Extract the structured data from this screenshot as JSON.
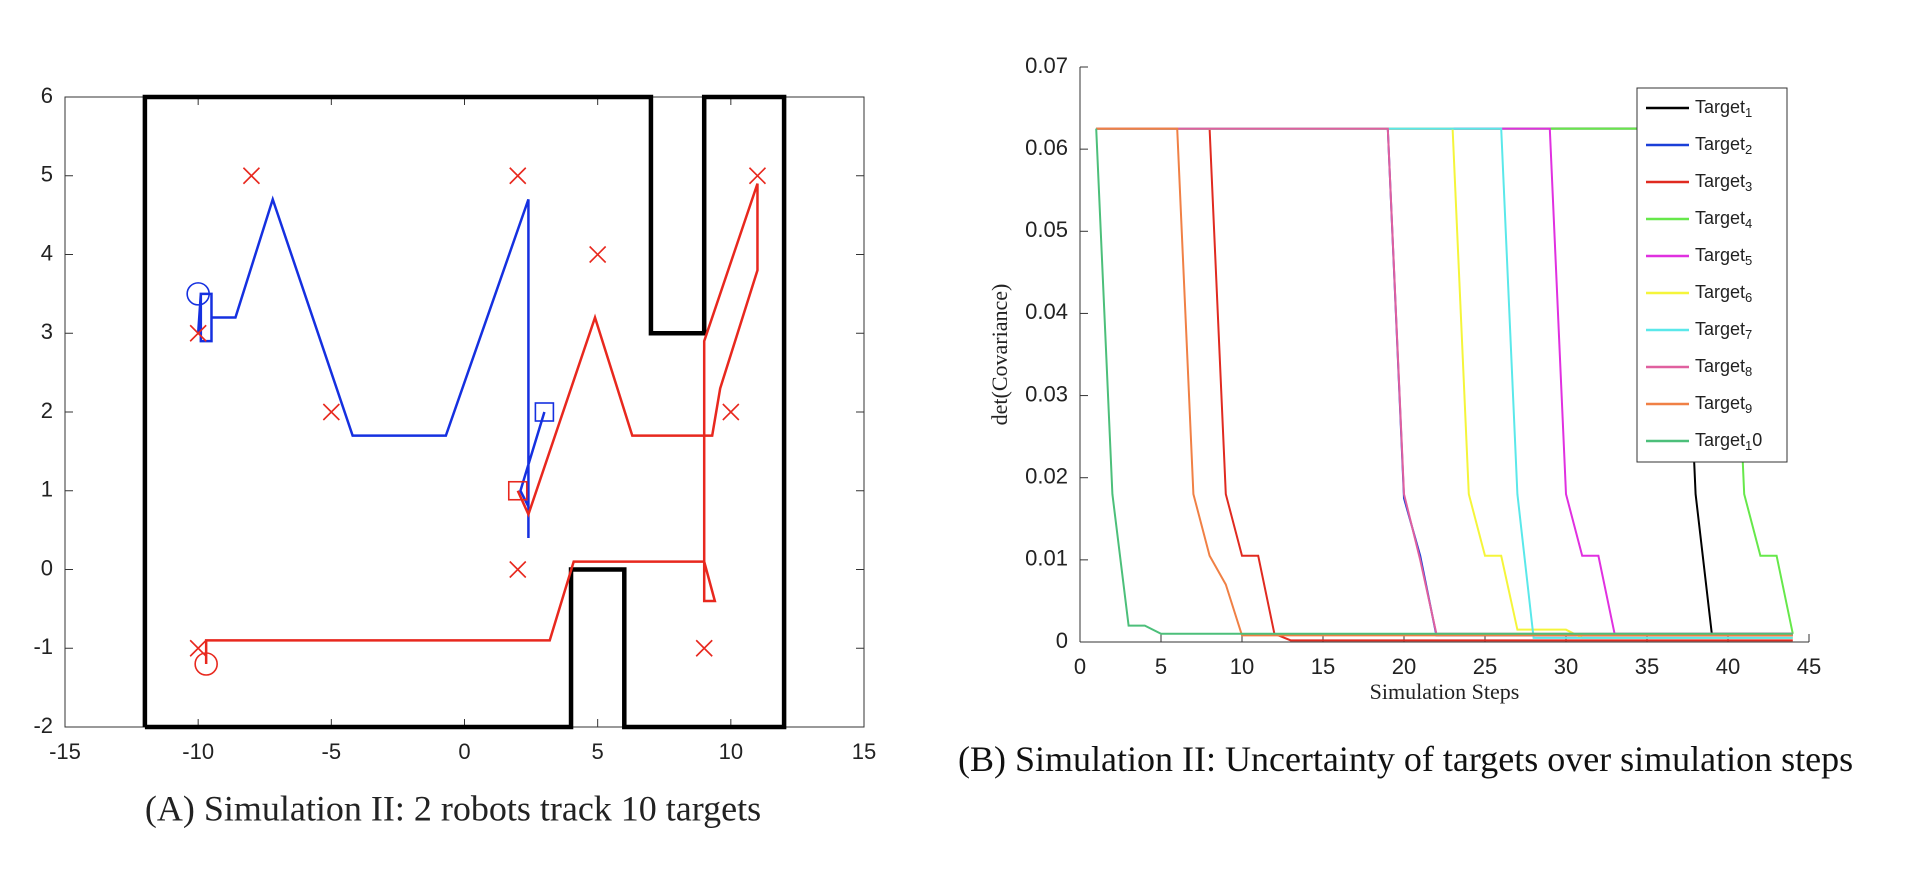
{
  "chart_data": [
    {
      "type": "line",
      "caption": "(A) Simulation II: 2 robots track 10 targets",
      "xlim": [
        -15,
        15
      ],
      "ylim": [
        -2,
        6
      ],
      "xticks": [
        -15,
        -10,
        -5,
        0,
        5,
        10,
        15
      ],
      "yticks": [
        -2,
        -1,
        0,
        1,
        2,
        3,
        4,
        5,
        6
      ],
      "box": true,
      "series": [
        {
          "color": "#000000",
          "linewidth": 4.5,
          "x": [
            -12,
            -12,
            7,
            7,
            9,
            9,
            12,
            12,
            6,
            6,
            4,
            4,
            -12
          ],
          "values": [
            -2,
            6,
            6,
            3,
            3,
            6,
            6,
            -2,
            -2,
            0,
            0,
            -2,
            -2
          ]
        },
        {
          "color": "#1530e0",
          "linewidth": 2.5,
          "x": [
            -10,
            -9.9,
            -9.5,
            -9.5,
            -9.9,
            -9.9,
            -9.5,
            -9.5,
            -8.6,
            -7.2,
            -4.2,
            -0.7,
            2.4,
            2.4,
            2.4,
            2.1,
            3
          ],
          "values": [
            3,
            3.5,
            3.5,
            2.9,
            2.9,
            3.5,
            3.5,
            3.2,
            3.2,
            4.7,
            1.7,
            1.7,
            4.7,
            0.4,
            0.8,
            1,
            2
          ]
        },
        {
          "color": "#e8281e",
          "linewidth": 2.5,
          "x": [
            -9.7,
            -9.7,
            3.2,
            4.1,
            9,
            9.4,
            9,
            9,
            11,
            11,
            9.6,
            9.3,
            6.3,
            4.9,
            2.4,
            2
          ],
          "values": [
            -1.2,
            -0.9,
            -0.9,
            0.1,
            0.1,
            -0.4,
            -0.4,
            2.9,
            4.9,
            3.8,
            2.3,
            1.7,
            1.7,
            3.2,
            0.7,
            1
          ]
        },
        {
          "color": "#e8281e",
          "line": false,
          "marker": "x",
          "x": [
            -8,
            2,
            5,
            11,
            -10,
            -5,
            10,
            2,
            -10,
            9
          ],
          "values": [
            5,
            5,
            4,
            5,
            3,
            2,
            2,
            0,
            -1,
            -1
          ]
        },
        {
          "color": "#1530e0",
          "line": false,
          "marker": "circle",
          "x": [
            -10
          ],
          "values": [
            3.5
          ]
        },
        {
          "color": "#e8281e",
          "line": false,
          "marker": "circle",
          "x": [
            -9.7
          ],
          "values": [
            -1.2
          ]
        },
        {
          "color": "#1530e0",
          "line": false,
          "marker": "square",
          "x": [
            3
          ],
          "values": [
            2
          ]
        },
        {
          "color": "#e8281e",
          "line": false,
          "marker": "square",
          "x": [
            2
          ],
          "values": [
            1
          ]
        }
      ]
    },
    {
      "type": "line",
      "caption": "(B) Simulation II: Uncertainty of targets over simulation steps",
      "x_label": "Simulation Steps",
      "y_label": "det(Covariance)",
      "xlim": [
        0,
        45
      ],
      "ylim": [
        0,
        0.07
      ],
      "xticks": [
        0,
        5,
        10,
        15,
        20,
        25,
        30,
        35,
        40,
        45
      ],
      "yticks": [
        0,
        0.01,
        0.02,
        0.03,
        0.04,
        0.05,
        0.06,
        0.07
      ],
      "box": false,
      "legend": "upper right",
      "x": [
        1,
        2,
        3,
        4,
        5,
        6,
        7,
        8,
        9,
        10,
        11,
        12,
        13,
        14,
        15,
        16,
        17,
        18,
        19,
        20,
        21,
        22,
        23,
        24,
        25,
        26,
        27,
        28,
        29,
        30,
        31,
        32,
        33,
        34,
        35,
        36,
        37,
        38,
        39,
        40,
        41,
        42,
        43,
        44
      ],
      "series": [
        {
          "name": "Target_1",
          "color": "#000000",
          "linewidth": 2,
          "values": [
            0.0625,
            0.0625,
            0.0625,
            0.0625,
            0.0625,
            0.0625,
            0.0625,
            0.0625,
            0.0625,
            0.0625,
            0.0625,
            0.0625,
            0.0625,
            0.0625,
            0.0625,
            0.0625,
            0.0625,
            0.0625,
            0.0625,
            0.0625,
            0.0625,
            0.0625,
            0.0625,
            0.0625,
            0.0625,
            0.0625,
            0.0625,
            0.0625,
            0.0625,
            0.0625,
            0.0625,
            0.0625,
            0.0625,
            0.0625,
            0.0625,
            0.0625,
            0.0625,
            0.018,
            0.001,
            0.001,
            0.001,
            0.001,
            0.001,
            0.001
          ]
        },
        {
          "name": "Target_2",
          "color": "#1a3fd8",
          "linewidth": 2,
          "values": [
            0.0625,
            0.0625,
            0.0625,
            0.0625,
            0.0625,
            0.0625,
            0.0625,
            0.0625,
            0.0625,
            0.0625,
            0.0625,
            0.0625,
            0.0625,
            0.0625,
            0.0625,
            0.0625,
            0.0625,
            0.0625,
            0.0625,
            0.0175,
            0.0105,
            0.0008,
            0.0008,
            0.0008,
            0.0008,
            0.0008,
            0.0008,
            0.0008,
            0.0008,
            0.0008,
            0.0008,
            0.0008,
            0.0008,
            0.0008,
            0.0008,
            0.0008,
            0.0008,
            0.0008,
            0.0008,
            0.0008,
            0.0008,
            0.0008,
            0.0008,
            0.0008
          ]
        },
        {
          "name": "Target_3",
          "color": "#e02a20",
          "linewidth": 2,
          "values": [
            0.0625,
            0.0625,
            0.0625,
            0.0625,
            0.0625,
            0.0625,
            0.0625,
            0.0625,
            0.018,
            0.0105,
            0.0105,
            0.001,
            0.0002,
            0.0002,
            0.0002,
            0.0002,
            0.0002,
            0.0002,
            0.0002,
            0.0002,
            0.0002,
            0.0002,
            0.0002,
            0.0002,
            0.0002,
            0.0002,
            0.0002,
            0.0002,
            0.0002,
            0.0002,
            0.0002,
            0.0002,
            0.0002,
            0.0002,
            0.0002,
            0.0002,
            0.0002,
            0.0002,
            0.0002,
            0.0002,
            0.0002,
            0.0002,
            0.0002,
            0.0002
          ]
        },
        {
          "name": "Target_4",
          "color": "#66e84a",
          "linewidth": 2,
          "values": [
            0.0625,
            0.0625,
            0.0625,
            0.0625,
            0.0625,
            0.0625,
            0.0625,
            0.0625,
            0.0625,
            0.0625,
            0.0625,
            0.0625,
            0.0625,
            0.0625,
            0.0625,
            0.0625,
            0.0625,
            0.0625,
            0.0625,
            0.0625,
            0.0625,
            0.0625,
            0.0625,
            0.0625,
            0.0625,
            0.0625,
            0.0625,
            0.0625,
            0.0625,
            0.0625,
            0.0625,
            0.0625,
            0.0625,
            0.0625,
            0.0625,
            0.0625,
            0.0625,
            0.0625,
            0.0625,
            0.0625,
            0.018,
            0.0105,
            0.0105,
            0.001
          ]
        },
        {
          "name": "Target_5",
          "color": "#e030e0",
          "linewidth": 2,
          "values": [
            0.0625,
            0.0625,
            0.0625,
            0.0625,
            0.0625,
            0.0625,
            0.0625,
            0.0625,
            0.0625,
            0.0625,
            0.0625,
            0.0625,
            0.0625,
            0.0625,
            0.0625,
            0.0625,
            0.0625,
            0.0625,
            0.0625,
            0.0625,
            0.0625,
            0.0625,
            0.0625,
            0.0625,
            0.0625,
            0.0625,
            0.0625,
            0.0625,
            0.0625,
            0.018,
            0.0105,
            0.0105,
            0.001,
            0.001,
            0.001,
            0.001,
            0.001,
            0.001,
            0.001,
            0.001,
            0.001,
            0.001,
            0.001,
            0.001
          ]
        },
        {
          "name": "Target_6",
          "color": "#f5f53a",
          "linewidth": 2,
          "values": [
            0.0625,
            0.0625,
            0.0625,
            0.0625,
            0.0625,
            0.0625,
            0.0625,
            0.0625,
            0.0625,
            0.0625,
            0.0625,
            0.0625,
            0.0625,
            0.0625,
            0.0625,
            0.0625,
            0.0625,
            0.0625,
            0.0625,
            0.0625,
            0.0625,
            0.0625,
            0.0625,
            0.018,
            0.0105,
            0.0105,
            0.0015,
            0.0015,
            0.0015,
            0.0015,
            0.0005,
            0.0005,
            0.0005,
            0.0005,
            0.0005,
            0.0005,
            0.0005,
            0.0005,
            0.0005,
            0.0005,
            0.0005,
            0.0005,
            0.0005,
            0.0005
          ]
        },
        {
          "name": "Target_7",
          "color": "#5ae8ea",
          "linewidth": 2,
          "values": [
            0.0625,
            0.0625,
            0.0625,
            0.0625,
            0.0625,
            0.0625,
            0.0625,
            0.0625,
            0.0625,
            0.0625,
            0.0625,
            0.0625,
            0.0625,
            0.0625,
            0.0625,
            0.0625,
            0.0625,
            0.0625,
            0.0625,
            0.0625,
            0.0625,
            0.0625,
            0.0625,
            0.0625,
            0.0625,
            0.0625,
            0.018,
            0.0005,
            0.0005,
            0.0005,
            0.0005,
            0.0005,
            0.0005,
            0.0005,
            0.0005,
            0.0005,
            0.0005,
            0.0005,
            0.0005,
            0.0005,
            0.0005,
            0.0005,
            0.0005,
            0.0005
          ]
        },
        {
          "name": "Target_8",
          "color": "#e0609f",
          "linewidth": 2,
          "values": [
            0.0625,
            0.0625,
            0.0625,
            0.0625,
            0.0625,
            0.0625,
            0.0625,
            0.0625,
            0.0625,
            0.0625,
            0.0625,
            0.0625,
            0.0625,
            0.0625,
            0.0625,
            0.0625,
            0.0625,
            0.0625,
            0.0625,
            0.018,
            0.01,
            0.001,
            0.001,
            0.001,
            0.001,
            0.001,
            0.001,
            0.001,
            0.001,
            0.001,
            0.001,
            0.001,
            0.001,
            0.001,
            0.001,
            0.001,
            0.001,
            0.001,
            0.001,
            0.001,
            0.001,
            0.001,
            0.001,
            0.001
          ]
        },
        {
          "name": "Target_9",
          "color": "#f08045",
          "linewidth": 2,
          "values": [
            0.0625,
            0.0625,
            0.0625,
            0.0625,
            0.0625,
            0.0625,
            0.018,
            0.0105,
            0.007,
            0.0008,
            0.0008,
            0.0008,
            0.0008,
            0.0008,
            0.0008,
            0.0008,
            0.0008,
            0.0008,
            0.0008,
            0.0008,
            0.0008,
            0.0008,
            0.0008,
            0.0008,
            0.0008,
            0.0008,
            0.0008,
            0.0008,
            0.0008,
            0.0008,
            0.0008,
            0.0008,
            0.0008,
            0.0008,
            0.0008,
            0.0008,
            0.0008,
            0.0008,
            0.0008,
            0.0008,
            0.0008,
            0.0008,
            0.0008,
            0.0008
          ]
        },
        {
          "name": "Target_10",
          "color": "#4cbf7a",
          "linewidth": 2,
          "values": [
            0.0625,
            0.018,
            0.002,
            0.002,
            0.001,
            0.001,
            0.001,
            0.001,
            0.001,
            0.001,
            0.001,
            0.001,
            0.001,
            0.001,
            0.001,
            0.001,
            0.001,
            0.001,
            0.001,
            0.001,
            0.001,
            0.001,
            0.001,
            0.001,
            0.001,
            0.001,
            0.001,
            0.001,
            0.001,
            0.001,
            0.001,
            0.001,
            0.001,
            0.001,
            0.001,
            0.001,
            0.001,
            0.001,
            0.001,
            0.001,
            0.001,
            0.001,
            0.001,
            0.001
          ]
        }
      ]
    }
  ]
}
